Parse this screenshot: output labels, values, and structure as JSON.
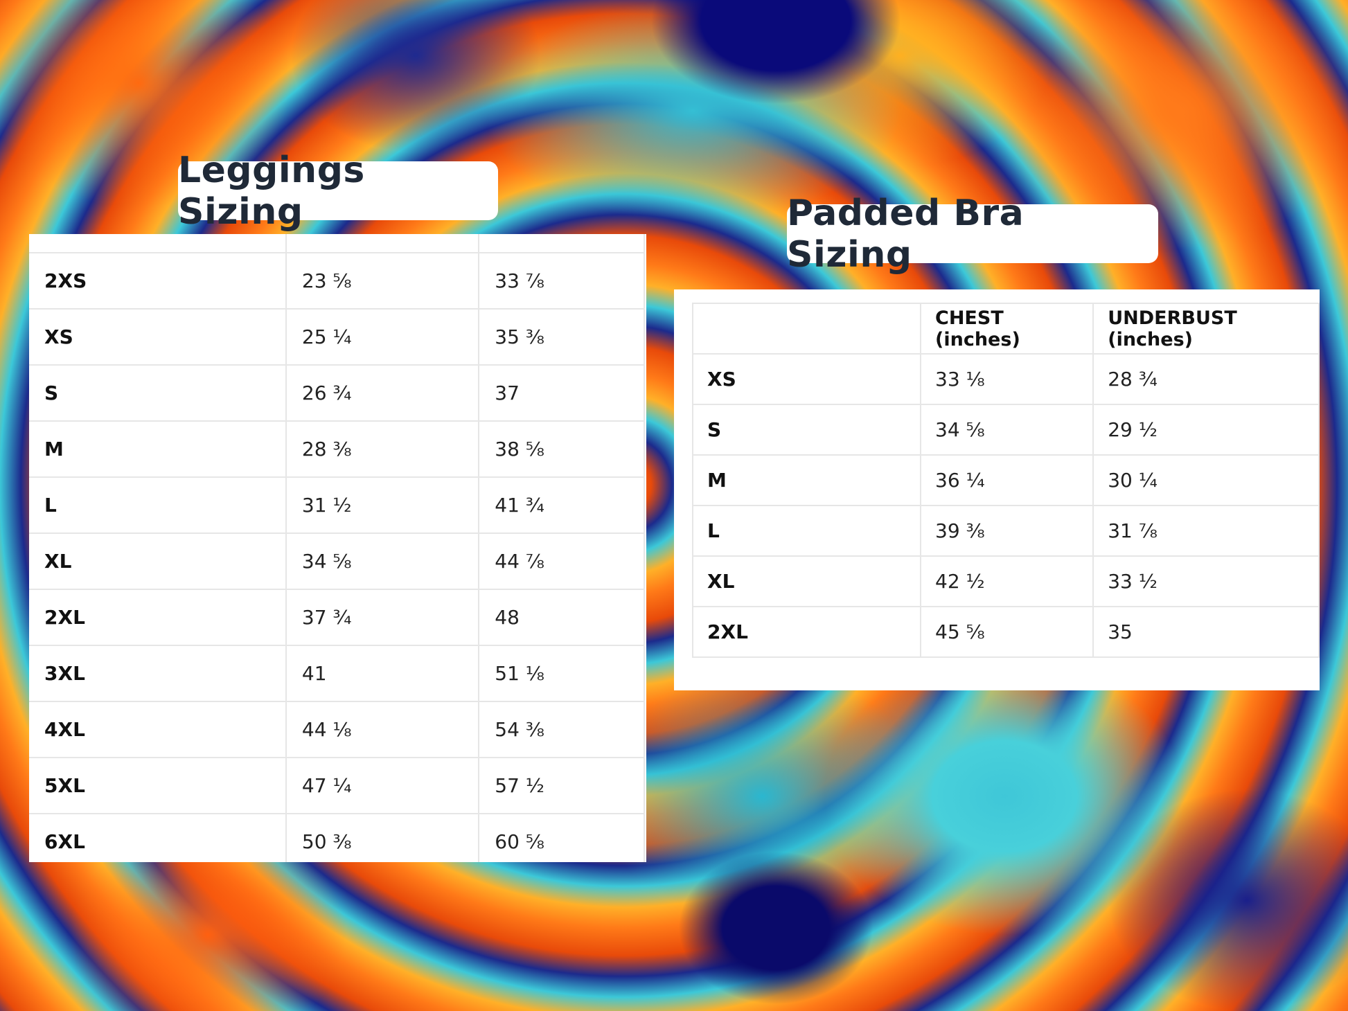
{
  "leggings": {
    "title": "Leggings Sizing",
    "rows": [
      {
        "size": "2XS",
        "col1": "23 ⅝",
        "col2": "33 ⅞"
      },
      {
        "size": "XS",
        "col1": "25 ¼",
        "col2": "35 ⅜"
      },
      {
        "size": "S",
        "col1": "26 ¾",
        "col2": "37"
      },
      {
        "size": "M",
        "col1": "28 ⅜",
        "col2": "38 ⅝"
      },
      {
        "size": "L",
        "col1": "31 ½",
        "col2": "41 ¾"
      },
      {
        "size": "XL",
        "col1": "34 ⅝",
        "col2": "44 ⅞"
      },
      {
        "size": "2XL",
        "col1": "37 ¾",
        "col2": "48"
      },
      {
        "size": "3XL",
        "col1": "41",
        "col2": "51 ⅛"
      },
      {
        "size": "4XL",
        "col1": "44 ⅛",
        "col2": "54 ⅜"
      },
      {
        "size": "5XL",
        "col1": "47 ¼",
        "col2": "57 ½"
      },
      {
        "size": "6XL",
        "col1": "50 ⅜",
        "col2": "60 ⅝"
      }
    ]
  },
  "bra": {
    "title": "Padded Bra Sizing",
    "headers": [
      "",
      "CHEST (inches)",
      "UNDERBUST (inches)"
    ],
    "rows": [
      {
        "size": "XS",
        "chest": "33 ⅛",
        "underbust": "28 ¾"
      },
      {
        "size": "S",
        "chest": "34 ⅝",
        "underbust": "29 ½"
      },
      {
        "size": "M",
        "chest": "36 ¼",
        "underbust": "30 ¼"
      },
      {
        "size": "L",
        "chest": "39 ⅜",
        "underbust": "31 ⅞"
      },
      {
        "size": "XL",
        "chest": "42 ½",
        "underbust": "33 ½"
      },
      {
        "size": "2XL",
        "chest": "45 ⅝",
        "underbust": "35"
      }
    ]
  }
}
